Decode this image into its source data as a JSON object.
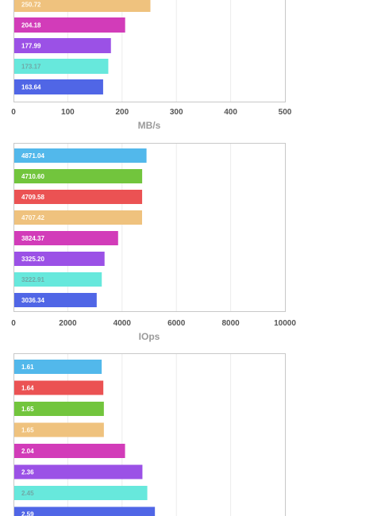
{
  "chart_data": [
    {
      "type": "bar",
      "orientation": "horizontal",
      "xlabel": "MB/s",
      "xlim": [
        0,
        500
      ],
      "ticks": [
        "0",
        "100",
        "200",
        "300",
        "400",
        "500"
      ],
      "tick_values": [
        0,
        100,
        200,
        300,
        400,
        500
      ],
      "grid": true,
      "bars": [
        {
          "label": "250.72",
          "value": 250.72,
          "color": "#EFC27E"
        },
        {
          "label": "204.18",
          "value": 204.18,
          "color": "#D23CB9"
        },
        {
          "label": "177.99",
          "value": 177.99,
          "color": "#9B51E6"
        },
        {
          "label": "173.17",
          "value": 173.17,
          "color": "#67E8DC"
        },
        {
          "label": "163.64",
          "value": 163.64,
          "color": "#5066E6"
        }
      ]
    },
    {
      "type": "bar",
      "orientation": "horizontal",
      "xlabel": "IOps",
      "xlim": [
        0,
        10000
      ],
      "ticks": [
        "0",
        "2000",
        "4000",
        "6000",
        "8000",
        "10000"
      ],
      "tick_values": [
        0,
        2000,
        4000,
        6000,
        8000,
        10000
      ],
      "grid": true,
      "bars": [
        {
          "label": "4871.04",
          "value": 4871.04,
          "color": "#52B8EB"
        },
        {
          "label": "4710.60",
          "value": 4710.6,
          "color": "#72C53D"
        },
        {
          "label": "4709.58",
          "value": 4709.58,
          "color": "#EB5253"
        },
        {
          "label": "4707.42",
          "value": 4707.42,
          "color": "#EFC27E"
        },
        {
          "label": "3824.37",
          "value": 3824.37,
          "color": "#D23CB9"
        },
        {
          "label": "3325.20",
          "value": 3325.2,
          "color": "#9B51E6"
        },
        {
          "label": "3222.91",
          "value": 3222.91,
          "color": "#67E8DC"
        },
        {
          "label": "3036.34",
          "value": 3036.34,
          "color": "#5066E6"
        }
      ]
    },
    {
      "type": "bar",
      "orientation": "horizontal",
      "xlim": [
        0,
        5
      ],
      "grid": true,
      "bars": [
        {
          "label": "1.61",
          "value": 1.61,
          "color": "#52B8EB"
        },
        {
          "label": "1.64",
          "value": 1.64,
          "color": "#EB5253"
        },
        {
          "label": "1.65",
          "value": 1.65,
          "color": "#72C53D"
        },
        {
          "label": "1.65",
          "value": 1.65,
          "color": "#EFC27E"
        },
        {
          "label": "2.04",
          "value": 2.04,
          "color": "#D23CB9"
        },
        {
          "label": "2.36",
          "value": 2.36,
          "color": "#9B51E6"
        },
        {
          "label": "2.45",
          "value": 2.45,
          "color": "#67E8DC"
        },
        {
          "label": "2.59",
          "value": 2.59,
          "color": "#5066E6"
        }
      ]
    }
  ]
}
